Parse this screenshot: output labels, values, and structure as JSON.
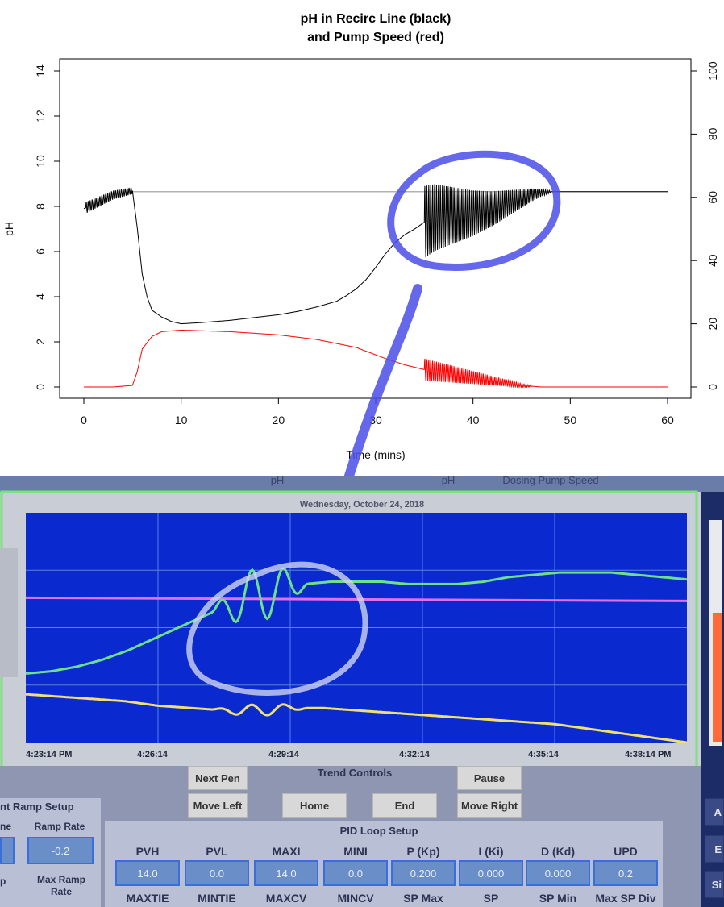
{
  "top_chart": {
    "title_line1": "pH in Recirc Line (black)",
    "title_line2": "and Pump Speed (red)",
    "xlabel": "Time (mins)",
    "ylabel_left": "pH",
    "x_ticks": [
      0,
      10,
      20,
      30,
      40,
      50,
      60
    ],
    "y_left_ticks": [
      0,
      2,
      4,
      6,
      8,
      10,
      12,
      14
    ],
    "y_right_ticks": [
      0,
      20,
      40,
      60,
      80,
      100
    ]
  },
  "chart_data": {
    "type": "line",
    "title": "pH in Recirc Line (black)\nand Pump Speed (red)",
    "xlabel": "Time (mins)",
    "ylabel": "pH",
    "xlim": [
      0,
      60
    ],
    "ylim_left": [
      0,
      14
    ],
    "ylim_right": [
      0,
      100
    ],
    "setpoint": 8.65,
    "series": [
      {
        "color": "#000000",
        "axis": "left",
        "x": [
          0,
          1,
          2,
          3,
          4,
          5,
          5.5,
          6,
          6.5,
          7,
          8,
          9,
          10,
          12,
          15,
          18,
          20,
          22,
          24,
          26,
          27,
          28,
          29,
          30,
          31,
          32,
          33,
          34,
          35,
          36,
          38,
          40,
          42,
          44,
          46,
          47,
          48,
          50,
          55,
          60
        ],
        "y": [
          7.9,
          8.1,
          8.3,
          8.5,
          8.6,
          8.7,
          7.0,
          5.0,
          4.0,
          3.4,
          3.1,
          2.9,
          2.8,
          2.85,
          2.95,
          3.1,
          3.2,
          3.35,
          3.55,
          3.8,
          4.05,
          4.35,
          4.75,
          5.3,
          5.9,
          6.4,
          6.75,
          7.0,
          7.3,
          7.5,
          7.6,
          7.7,
          7.9,
          8.2,
          8.5,
          8.6,
          8.65,
          8.65,
          8.65,
          8.65
        ],
        "oscillation": [
          {
            "x_start": 0.2,
            "x_end": 5,
            "amp_start": 0.25,
            "amp_end": 0.15
          },
          {
            "x_start": 35,
            "x_end": 48,
            "amp_start": 1.6,
            "amp_end": 0.05
          }
        ]
      },
      {
        "color": "#ff0000",
        "axis": "right",
        "x": [
          0,
          3,
          5,
          5.5,
          6,
          7,
          8,
          10,
          12,
          15,
          20,
          24,
          28,
          31,
          33,
          35,
          38,
          42,
          45,
          47,
          48,
          50,
          60
        ],
        "y": [
          0,
          0,
          0.5,
          5,
          12,
          16,
          17.5,
          18,
          17.8,
          17.5,
          16.5,
          15,
          12.5,
          9,
          7,
          5.5,
          4,
          2,
          0.5,
          0,
          0,
          0,
          0
        ],
        "oscillation": [
          {
            "x_start": 35,
            "x_end": 46,
            "amp_start": 3.5,
            "amp_end": 0.3
          }
        ]
      }
    ]
  },
  "trend_screen": {
    "date": "Wednesday, October 24, 2018",
    "header_ph_label": "pH",
    "header_ph_label2": "pH",
    "header_pump_label": "Dosing Pump Speed",
    "time_labels": [
      "4:23:14 PM",
      "4:26:14",
      "4:29:14",
      "4:32:14",
      "4:35:14",
      "4:38:14 PM"
    ],
    "green_trace": [
      0.3,
      0.31,
      0.33,
      0.36,
      0.4,
      0.45,
      0.5,
      0.55,
      0.6,
      0.64,
      0.67,
      0.69,
      0.7,
      0.7,
      0.7,
      0.69,
      0.69,
      0.69,
      0.7,
      0.72,
      0.73,
      0.74,
      0.74,
      0.74,
      0.73,
      0.72,
      0.71
    ],
    "magenta_level": 0.63,
    "yellow_trace": [
      0.21,
      0.2,
      0.19,
      0.18,
      0.16,
      0.15,
      0.14,
      0.14,
      0.15,
      0.15,
      0.14,
      0.13,
      0.12,
      0.11,
      0.1,
      0.09,
      0.08,
      0.06,
      0.04,
      0.02,
      0.0
    ]
  },
  "trend_controls": {
    "title": "Trend Controls",
    "next_pen": "Next Pen",
    "move_left": "Move Left",
    "home": "Home",
    "end": "End",
    "pause": "Pause",
    "move_right": "Move Right"
  },
  "ramp_setup": {
    "title": "nt Ramp Setup",
    "col1_label": "ne",
    "ramp_rate_label": "Ramp Rate",
    "ramp_rate_value": "-0.2",
    "p_label": "p",
    "max_ramp_label": "Max Ramp Rate"
  },
  "pid_setup": {
    "title": "PID Loop Setup",
    "row1_labels": [
      "PVH",
      "PVL",
      "MAXI",
      "MINI",
      "P (Kp)",
      "I (Ki)",
      "D (Kd)",
      "UPD"
    ],
    "row1_values": [
      "14.0",
      "0.0",
      "14.0",
      "0.0",
      "0.200",
      "0.000",
      "0.000",
      "0.2"
    ],
    "row2_labels": [
      "MAXTIE",
      "MINTIE",
      "MAXCV",
      "MINCV",
      "SP Max",
      "SP",
      "SP Min",
      "Max SP Div"
    ]
  },
  "right_edge": {
    "btn_a": "A",
    "btn_e": "E",
    "btn_si": "Si"
  },
  "colors": {
    "ph_line": "#000000",
    "pump_line": "#ff0000",
    "setpoint_line": "#999999",
    "annotation_marker": "#4a4ee8",
    "trend_bg": "#0a2ad0",
    "green_pen": "#6de08a",
    "yellow_pen": "#f0e070",
    "magenta_pen": "#e070f0"
  }
}
